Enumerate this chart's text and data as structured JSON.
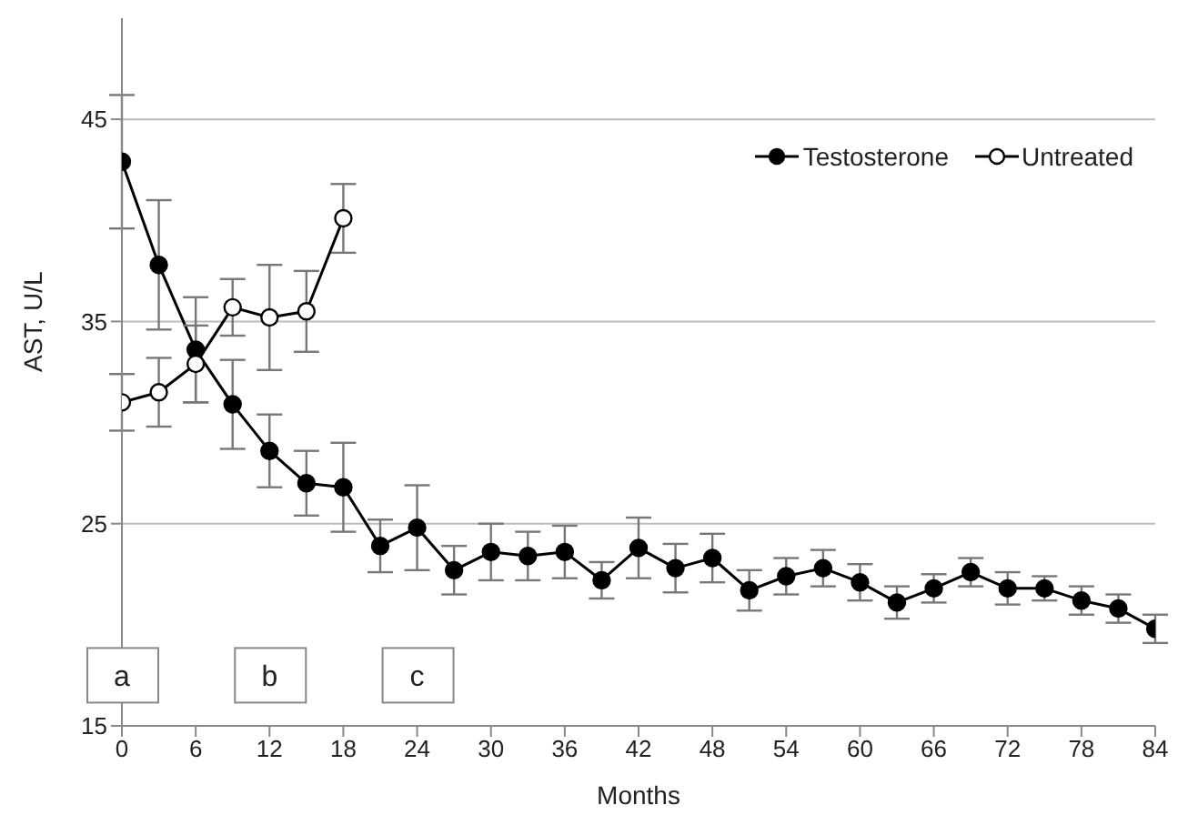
{
  "chart_data": {
    "type": "line",
    "xlabel": "Months",
    "ylabel": "AST, U/L",
    "xlim": [
      0,
      84
    ],
    "xticks": [
      0,
      6,
      12,
      18,
      24,
      30,
      36,
      42,
      48,
      54,
      60,
      66,
      72,
      78,
      84
    ],
    "ylim": [
      15,
      50
    ],
    "yticks": [
      15,
      25,
      35,
      45
    ],
    "grid": "y",
    "legend": "top right",
    "marker": "circle",
    "line_style": "solid",
    "series": [
      {
        "name": "Testosterone",
        "color": "#000000",
        "x": [
          0,
          3,
          6,
          9,
          12,
          15,
          18,
          21,
          24,
          27,
          30,
          33,
          36,
          39,
          42,
          45,
          48,
          51,
          54,
          57,
          60,
          63,
          66,
          69,
          72,
          75,
          78,
          81,
          84
        ],
        "values": [
          42.9,
          37.8,
          33.6,
          30.9,
          28.6,
          27.0,
          26.8,
          23.9,
          24.8,
          22.7,
          23.6,
          23.4,
          23.6,
          22.2,
          23.8,
          22.8,
          23.3,
          21.7,
          22.4,
          22.8,
          22.1,
          21.1,
          21.8,
          22.6,
          21.8,
          21.8,
          21.2,
          20.8,
          19.8
        ],
        "errors": [
          3.3,
          3.2,
          2.6,
          2.2,
          1.8,
          1.6,
          2.2,
          1.3,
          2.1,
          1.2,
          1.4,
          1.2,
          1.3,
          0.9,
          1.5,
          1.2,
          1.2,
          1.0,
          0.9,
          0.9,
          0.9,
          0.8,
          0.7,
          0.7,
          0.8,
          0.6,
          0.7,
          0.7,
          0.7
        ]
      },
      {
        "name": "Untreated",
        "color": "#000000",
        "x": [
          0,
          3,
          6,
          9,
          12,
          15,
          18
        ],
        "values": [
          31.0,
          31.5,
          32.9,
          35.7,
          35.2,
          35.5,
          40.1
        ],
        "errors": [
          1.4,
          1.7,
          1.9,
          1.4,
          2.6,
          2.0,
          1.7
        ]
      }
    ],
    "annotations": [
      {
        "text": "a",
        "x": 0,
        "y": 17.5
      },
      {
        "text": "b",
        "x": 12,
        "y": 17.5
      },
      {
        "text": "c",
        "x": 24,
        "y": 17.5
      }
    ]
  }
}
